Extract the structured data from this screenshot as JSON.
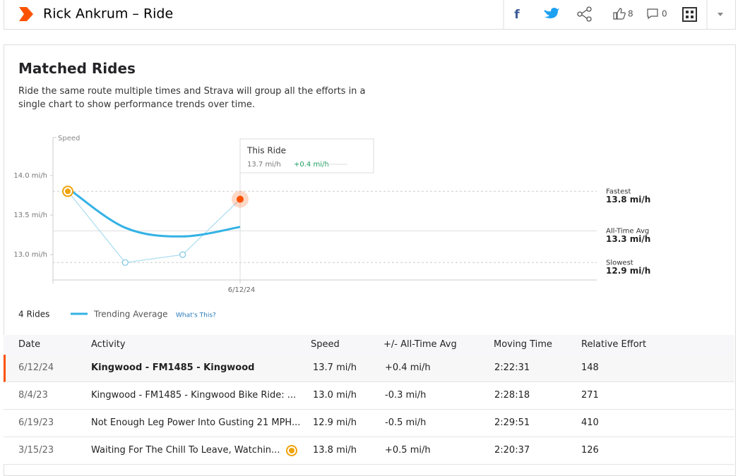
{
  "header": {
    "title": "Rick Ankrum – Ride",
    "kudos": "8",
    "comments": "0"
  },
  "section": {
    "title": "Matched Rides",
    "description": "Ride the same route multiple times and Strava will group all the efforts in a single chart to show performance trends over time."
  },
  "chart_data": {
    "type": "line",
    "y_label": "Speed",
    "categories": [
      null,
      null,
      null,
      "6/12/24"
    ],
    "series": [
      {
        "name": "Trending Average",
        "color": "#33b2e5",
        "values": [
          13.84,
          13.34,
          13.23,
          13.35
        ]
      },
      {
        "color": "#a9dcf0",
        "values": [
          13.8,
          12.9,
          13.0,
          13.7
        ]
      }
    ],
    "ylim": [
      12.68,
      14.48
    ],
    "yticks": [
      {
        "value": 13.0,
        "label": "13.0 mi/h"
      },
      {
        "value": 13.5,
        "label": "13.5 mi/h"
      },
      {
        "value": 14.0,
        "label": "14.0 mi/h"
      }
    ],
    "reference_lines": [
      {
        "label": "Fastest",
        "value": 13.8,
        "value_label": "13.8 mi/h",
        "dashed": true
      },
      {
        "label": "All-Time Avg",
        "value": 13.3,
        "value_label": "13.3 mi/h",
        "dashed": false
      },
      {
        "label": "Slowest",
        "value": 12.9,
        "value_label": "12.9 mi/h",
        "dashed": true
      }
    ],
    "tooltip": {
      "title": "This Ride",
      "speed": "13.7 mi/h",
      "difference": "+0.4 mi/h"
    },
    "rides_label": "4 Rides",
    "legend_link": "What's This?",
    "highlight_color": "#fc5200",
    "best_color": "#f0a30a"
  },
  "table": {
    "columns": [
      "Date",
      "Activity",
      "Speed",
      "+/- All-Time Avg",
      "Moving Time",
      "Relative Effort"
    ],
    "rows": [
      [
        "6/12/24",
        "Kingwood - FM1485 - Kingwood",
        "13.7 mi/h",
        "+0.4 mi/h",
        "2:22:31",
        "148"
      ],
      [
        "8/4/23",
        "Kingwood - FM1485 - Kingwood Bike Ride: ...",
        "13.0 mi/h",
        "-0.3 mi/h",
        "2:28:18",
        "271"
      ],
      [
        "6/19/23",
        "Not Enough Leg Power Into Gusting 21 MPH...",
        "12.9 mi/h",
        "-0.5 mi/h",
        "2:29:51",
        "410"
      ],
      [
        "3/15/23",
        "Waiting For The Chill To Leave, Watchin...",
        "13.8 mi/h",
        "+0.5 mi/h",
        "2:20:37",
        "126"
      ]
    ]
  }
}
